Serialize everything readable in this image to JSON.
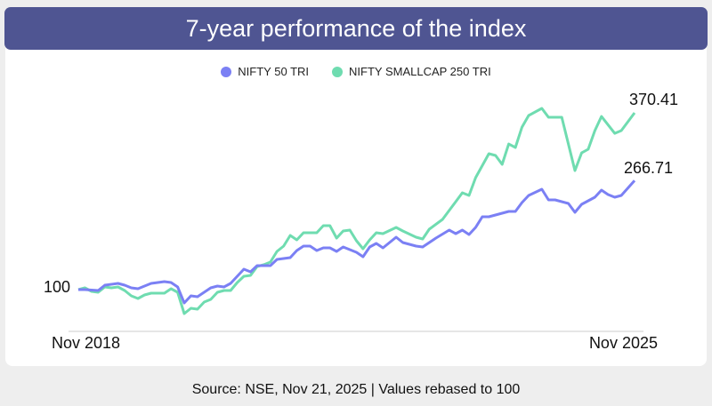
{
  "title": "7-year performance of the index",
  "footer": "Source: NSE, Nov 21, 2025 | Values rebased to 100",
  "chart_data": {
    "type": "line",
    "title": "7-year performance of the index",
    "xlabel": "",
    "ylabel": "",
    "x_tick_labels": [
      "Nov 2018",
      "Nov 2025"
    ],
    "x_range": [
      "2018-11",
      "2025-11"
    ],
    "ylim": [
      50,
      390
    ],
    "grid": false,
    "legend": "top-center",
    "annotations": {
      "start": "100",
      "nifty50_end": "266.71",
      "smallcap_end": "370.41"
    },
    "series": [
      {
        "name": "NIFTY 50 TRI",
        "color": "#7b80f4",
        "points": [
          [
            "2018-11",
            100
          ],
          [
            "2018-12",
            100
          ],
          [
            "2019-02",
            98.6
          ],
          [
            "2019-03",
            106.8
          ],
          [
            "2019-05",
            109.5
          ],
          [
            "2019-06",
            106.8
          ],
          [
            "2019-07",
            102.7
          ],
          [
            "2019-08",
            101.4
          ],
          [
            "2019-10",
            109.5
          ],
          [
            "2019-12",
            112.2
          ],
          [
            "2020-01",
            110.9
          ],
          [
            "2020-02",
            104.1
          ],
          [
            "2020-03",
            79.6
          ],
          [
            "2020-04",
            90.5
          ],
          [
            "2020-05",
            89.1
          ],
          [
            "2020-07",
            102.7
          ],
          [
            "2020-08",
            105.4
          ],
          [
            "2020-09",
            104.1
          ],
          [
            "2020-10",
            109.5
          ],
          [
            "2020-12",
            131.3
          ],
          [
            "2021-01",
            127.2
          ],
          [
            "2021-02",
            136.7
          ],
          [
            "2021-04",
            136.7
          ],
          [
            "2021-05",
            146.2
          ],
          [
            "2021-07",
            148.9
          ],
          [
            "2021-08",
            159.8
          ],
          [
            "2021-09",
            166.6
          ],
          [
            "2021-10",
            166.6
          ],
          [
            "2021-11",
            159.8
          ],
          [
            "2021-12",
            163.9
          ],
          [
            "2022-01",
            163.9
          ],
          [
            "2022-02",
            158.4
          ],
          [
            "2022-03",
            165.2
          ],
          [
            "2022-05",
            157.1
          ],
          [
            "2022-06",
            150.3
          ],
          [
            "2022-07",
            165.2
          ],
          [
            "2022-08",
            170.7
          ],
          [
            "2022-09",
            163.9
          ],
          [
            "2022-11",
            180.2
          ],
          [
            "2022-12",
            172.0
          ],
          [
            "2023-02",
            166.6
          ],
          [
            "2023-03",
            165.2
          ],
          [
            "2023-05",
            178.8
          ],
          [
            "2023-07",
            191.0
          ],
          [
            "2023-08",
            185.6
          ],
          [
            "2023-09",
            191.0
          ],
          [
            "2023-10",
            184.2
          ],
          [
            "2023-11",
            195.1
          ],
          [
            "2023-12",
            211.4
          ],
          [
            "2024-01",
            211.4
          ],
          [
            "2024-04",
            219.6
          ],
          [
            "2024-05",
            219.6
          ],
          [
            "2024-06",
            233.2
          ],
          [
            "2024-07",
            244.0
          ],
          [
            "2024-09",
            253.5
          ],
          [
            "2024-10",
            237.2
          ],
          [
            "2024-11",
            237.2
          ],
          [
            "2025-01",
            231.8
          ],
          [
            "2025-02",
            218.2
          ],
          [
            "2025-03",
            230.4
          ],
          [
            "2025-05",
            241.3
          ],
          [
            "2025-06",
            252.2
          ],
          [
            "2025-07",
            245.4
          ],
          [
            "2025-08",
            241.3
          ],
          [
            "2025-09",
            244.0
          ],
          [
            "2025-11",
            266.71
          ]
        ]
      },
      {
        "name": "NIFTY SMALLCAP 250 TRI",
        "color": "#6fdcb0",
        "points": [
          [
            "2018-11",
            100
          ],
          [
            "2018-12",
            102.7
          ],
          [
            "2019-01",
            97.3
          ],
          [
            "2019-02",
            95.9
          ],
          [
            "2019-03",
            104.1
          ],
          [
            "2019-04",
            102.7
          ],
          [
            "2019-05",
            104.1
          ],
          [
            "2019-06",
            98.6
          ],
          [
            "2019-07",
            90.5
          ],
          [
            "2019-08",
            86.4
          ],
          [
            "2019-09",
            91.8
          ],
          [
            "2019-10",
            94.6
          ],
          [
            "2019-12",
            94.6
          ],
          [
            "2020-01",
            101.4
          ],
          [
            "2020-02",
            95.9
          ],
          [
            "2020-03",
            63.3
          ],
          [
            "2020-04",
            71.5
          ],
          [
            "2020-05",
            70.1
          ],
          [
            "2020-06",
            81.0
          ],
          [
            "2020-07",
            85.1
          ],
          [
            "2020-08",
            95.9
          ],
          [
            "2020-09",
            98.6
          ],
          [
            "2020-10",
            98.6
          ],
          [
            "2020-11",
            110.9
          ],
          [
            "2020-12",
            120.4
          ],
          [
            "2021-01",
            121.7
          ],
          [
            "2021-02",
            135.3
          ],
          [
            "2021-03",
            138.0
          ],
          [
            "2021-04",
            142.1
          ],
          [
            "2021-05",
            158.4
          ],
          [
            "2021-06",
            166.6
          ],
          [
            "2021-07",
            182.9
          ],
          [
            "2021-08",
            176.1
          ],
          [
            "2021-09",
            187.0
          ],
          [
            "2021-11",
            187.0
          ],
          [
            "2021-12",
            197.8
          ],
          [
            "2022-01",
            197.8
          ],
          [
            "2022-02",
            178.8
          ],
          [
            "2022-03",
            189.7
          ],
          [
            "2022-04",
            191.0
          ],
          [
            "2022-05",
            174.7
          ],
          [
            "2022-06",
            162.5
          ],
          [
            "2022-07",
            176.1
          ],
          [
            "2022-08",
            187.0
          ],
          [
            "2022-09",
            185.6
          ],
          [
            "2022-11",
            195.1
          ],
          [
            "2022-12",
            189.7
          ],
          [
            "2023-02",
            180.2
          ],
          [
            "2023-03",
            177.4
          ],
          [
            "2023-04",
            192.4
          ],
          [
            "2023-06",
            207.3
          ],
          [
            "2023-08",
            234.5
          ],
          [
            "2023-09",
            248.1
          ],
          [
            "2023-10",
            244.0
          ],
          [
            "2023-11",
            271.2
          ],
          [
            "2024-01",
            307.9
          ],
          [
            "2024-02",
            305.2
          ],
          [
            "2024-03",
            291.6
          ],
          [
            "2024-04",
            322.8
          ],
          [
            "2024-05",
            317.4
          ],
          [
            "2024-06",
            348.6
          ],
          [
            "2024-07",
            366.3
          ],
          [
            "2024-09",
            377.2
          ],
          [
            "2024-10",
            363.6
          ],
          [
            "2024-12",
            363.6
          ],
          [
            "2025-02",
            282.1
          ],
          [
            "2025-03",
            309.2
          ],
          [
            "2025-04",
            314.7
          ],
          [
            "2025-05",
            343.2
          ],
          [
            "2025-06",
            364.9
          ],
          [
            "2025-08",
            339.1
          ],
          [
            "2025-09",
            343.2
          ],
          [
            "2025-11",
            370.41
          ]
        ]
      }
    ]
  }
}
